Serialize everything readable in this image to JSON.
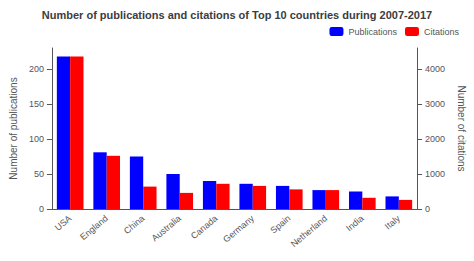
{
  "chart_data": {
    "type": "bar",
    "title": "Number of publications and citations of Top 10 countries during 2007-2017",
    "categories": [
      "USA",
      "England",
      "China",
      "Australia",
      "Canada",
      "Germany",
      "Spain",
      "Netherland",
      "India",
      "Italy"
    ],
    "series": [
      {
        "name": "Publications",
        "color": "#0000ff",
        "values": [
          218,
          81,
          75,
          50,
          40,
          36,
          33,
          27,
          25,
          18
        ]
      },
      {
        "name": "Citations",
        "color": "#ff0000",
        "axis": "y2",
        "values": [
          4360,
          1520,
          640,
          460,
          720,
          660,
          560,
          540,
          320,
          260
        ]
      }
    ],
    "ylabel": "Number of publications",
    "y2label": "Number of citations",
    "ylim": [
      0,
      230
    ],
    "yticks": [
      0,
      50,
      100,
      150,
      200
    ],
    "y2lim": [
      0,
      4600
    ],
    "y2ticks": [
      0,
      1000,
      2000,
      3000,
      4000
    ],
    "legend": "upper right",
    "grid": false
  }
}
